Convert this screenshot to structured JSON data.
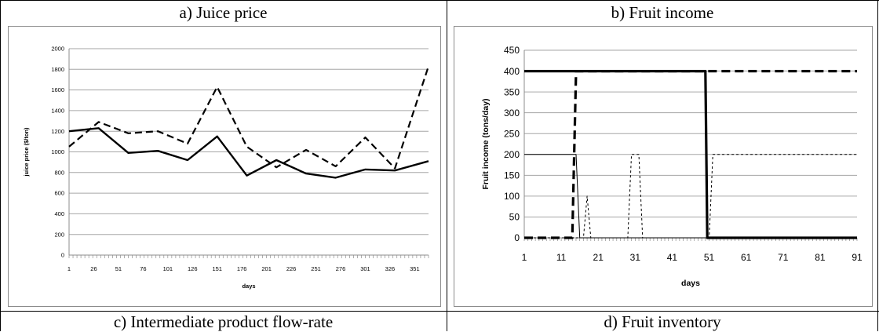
{
  "panels": {
    "a_title": "a) Juice price",
    "b_title": "b) Fruit income",
    "c_title": "c) Intermediate product flow-rate",
    "d_title": "d) Fruit inventory"
  },
  "chart_data": [
    {
      "type": "line",
      "title": "a) Juice price",
      "xlabel": "days",
      "ylabel": "juice price ($/ton)",
      "ylim": [
        0,
        2000
      ],
      "xlim": [
        1,
        365
      ],
      "y_ticks": [
        "0",
        "200",
        "400",
        "600",
        "800",
        "1000",
        "1200",
        "1400",
        "1600",
        "1800",
        "2000"
      ],
      "x_ticks": [
        "1",
        "26",
        "51",
        "76",
        "101",
        "126",
        "151",
        "176",
        "201",
        "226",
        "251",
        "276",
        "301",
        "326",
        "351"
      ],
      "grid": "horizontal",
      "series": [
        {
          "style": "solid",
          "x": [
            1,
            31,
            61,
            91,
            121,
            151,
            181,
            211,
            241,
            271,
            301,
            331,
            365
          ],
          "values": [
            1200,
            1230,
            990,
            1010,
            920,
            1150,
            770,
            920,
            790,
            750,
            830,
            820,
            910
          ]
        },
        {
          "style": "dashed",
          "x": [
            1,
            31,
            61,
            91,
            121,
            151,
            181,
            211,
            241,
            271,
            301,
            331,
            365
          ],
          "values": [
            1050,
            1290,
            1180,
            1200,
            1080,
            1630,
            1050,
            850,
            1020,
            860,
            1140,
            840,
            1830
          ]
        }
      ]
    },
    {
      "type": "line",
      "title": "b) Fruit income",
      "xlabel": "days",
      "ylabel": "Fruit income  (tons/day)",
      "ylim": [
        0,
        450
      ],
      "xlim": [
        1,
        91
      ],
      "y_ticks": [
        "0",
        "50",
        "100",
        "150",
        "200",
        "250",
        "300",
        "350",
        "400",
        "450"
      ],
      "x_ticks": [
        "1",
        "11",
        "21",
        "31",
        "41",
        "51",
        "61",
        "71",
        "81",
        "91"
      ],
      "grid": "horizontal",
      "series": [
        {
          "style": "thick-solid",
          "x": [
            1,
            50,
            50.5,
            91
          ],
          "values": [
            400,
            400,
            0,
            0
          ]
        },
        {
          "style": "thick-dashed",
          "x": [
            1,
            14,
            15,
            91
          ],
          "values": [
            0,
            0,
            400,
            400
          ]
        },
        {
          "style": "thin-solid",
          "x": [
            1,
            15,
            16,
            91
          ],
          "values": [
            200,
            200,
            0,
            0
          ]
        },
        {
          "style": "thin-dashed",
          "x": [
            1,
            17,
            18,
            19,
            29,
            30,
            32,
            33,
            51,
            52,
            91
          ],
          "values": [
            0,
            0,
            100,
            0,
            0,
            200,
            200,
            0,
            0,
            200,
            200
          ]
        }
      ]
    }
  ]
}
